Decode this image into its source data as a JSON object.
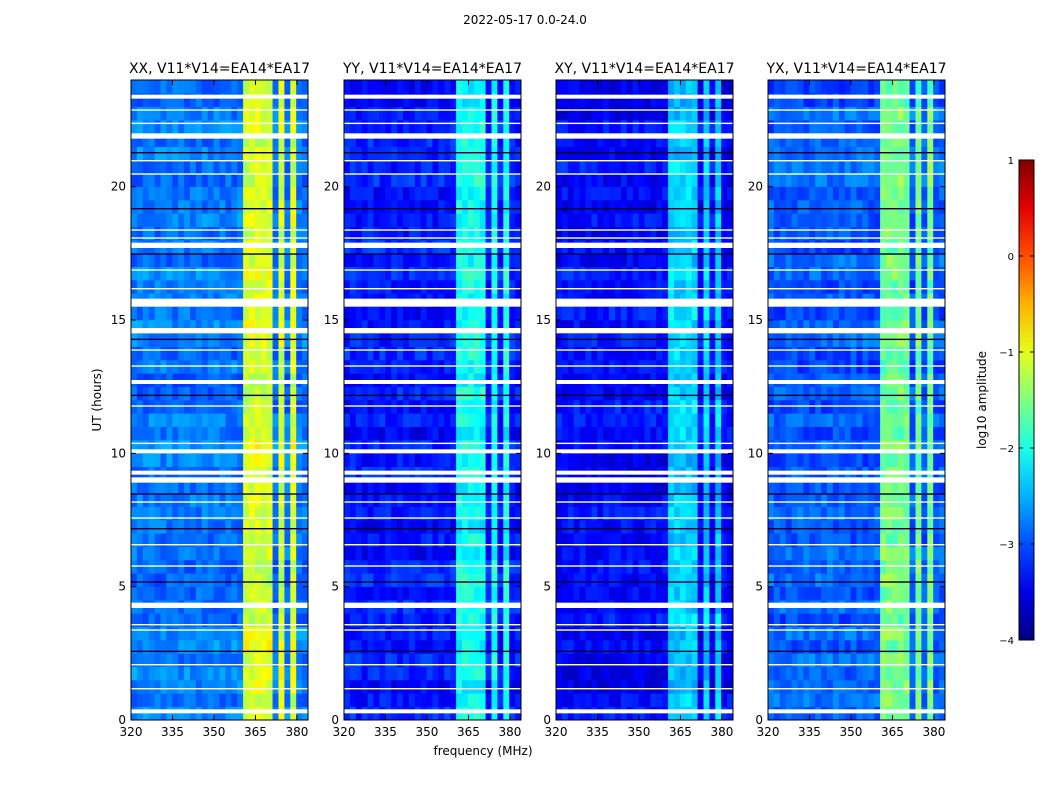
{
  "figure": {
    "title": "2022-05-17 0.0-24.0",
    "ylabel": "UT (hours)",
    "xlabel": "frequency (MHz)"
  },
  "chart_data": {
    "type": "heatmap",
    "panels": [
      {
        "title": "XX, V11*V14=EA14*EA17",
        "level": 0.8
      },
      {
        "title": "YY, V11*V14=EA14*EA17",
        "level": 0.3
      },
      {
        "title": "XY, V11*V14=EA14*EA17",
        "level": 0.15
      },
      {
        "title": "YX, V11*V14=EA14*EA17",
        "level": 0.55
      }
    ],
    "x_range": [
      320,
      384
    ],
    "x_ticks": [
      320,
      335,
      350,
      365,
      380
    ],
    "y_range": [
      0,
      24
    ],
    "y_ticks": [
      0,
      5,
      10,
      15,
      20
    ],
    "flagged_bands_hours": [
      [
        0.25,
        0.4
      ],
      [
        4.2,
        4.4
      ],
      [
        8.9,
        9.1
      ],
      [
        9.2,
        9.35
      ],
      [
        10.0,
        10.15
      ],
      [
        12.6,
        12.75
      ],
      [
        14.5,
        14.7
      ],
      [
        15.5,
        15.8
      ],
      [
        17.7,
        17.9
      ],
      [
        21.8,
        22.0
      ],
      [
        23.3,
        23.45
      ]
    ],
    "thin_flag_lines_hours": [
      1.2,
      2.1,
      2.6,
      3.4,
      3.6,
      5.2,
      5.8,
      6.6,
      7.2,
      7.6,
      8.2,
      8.5,
      10.4,
      11.8,
      12.2,
      13.3,
      13.9,
      14.3,
      16.2,
      16.9,
      17.5,
      18.1,
      18.4,
      19.2,
      20.5,
      21.0,
      21.3,
      22.4,
      22.9
    ],
    "rfi_channels_mhz": [
      [
        361,
        364.5
      ],
      [
        365.5,
        368.5
      ],
      [
        369.5,
        371.5
      ],
      [
        373,
        376
      ],
      [
        377,
        380
      ]
    ],
    "colorbar": {
      "label": "log10 amplitude",
      "range": [
        -4,
        1
      ],
      "ticks": [
        "1",
        "0",
        "−1",
        "−2",
        "−3",
        "−4"
      ],
      "colormap": "jet"
    }
  }
}
